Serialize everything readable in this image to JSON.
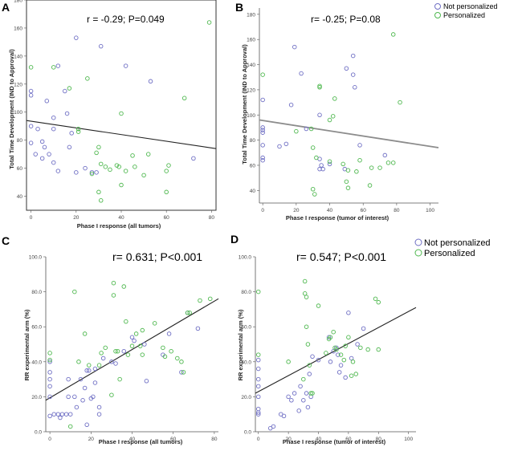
{
  "colors": {
    "blue": "#6f6fc4",
    "green": "#4fb84f",
    "line_black": "#222222",
    "line_gray": "#8c8c8c"
  },
  "legend_top": {
    "items": [
      {
        "label": "Not personalized",
        "color": "#6f6fc4"
      },
      {
        "label": "Personalized",
        "color": "#4fb84f"
      }
    ]
  },
  "legend_bottom": {
    "items": [
      {
        "label": "Not personalized",
        "color": "#6f6fc4"
      },
      {
        "label": "Personalized",
        "color": "#4fb84f"
      }
    ]
  },
  "chart_data": [
    {
      "panel": "A",
      "type": "scatter",
      "annotation": "r = -0.29; P=0.049",
      "xlabel": "Phase I response (all tumors)",
      "ylabel": "Total Time Development (IND to Approval)",
      "xlim": [
        -2,
        82
      ],
      "ylim": [
        30,
        180
      ],
      "xticks": [
        0,
        20,
        40,
        60,
        80
      ],
      "yticks": [
        40,
        60,
        80,
        100,
        120,
        140,
        160,
        180
      ],
      "fit": {
        "x0": -2,
        "y0": 94,
        "x1": 82,
        "y1": 74,
        "color": "black"
      },
      "series": [
        {
          "color": "blue",
          "points": [
            [
              0,
              112
            ],
            [
              0,
              115
            ],
            [
              0,
              90
            ],
            [
              0,
              78
            ],
            [
              2,
              70
            ],
            [
              3,
              88
            ],
            [
              5,
              79
            ],
            [
              5,
              67
            ],
            [
              6,
              75
            ],
            [
              7,
              108
            ],
            [
              8,
              70
            ],
            [
              10,
              88
            ],
            [
              10,
              96
            ],
            [
              10,
              64
            ],
            [
              12,
              133
            ],
            [
              12,
              58
            ],
            [
              15,
              115
            ],
            [
              16,
              99
            ],
            [
              17,
              75
            ],
            [
              18,
              85
            ],
            [
              20,
              153
            ],
            [
              20,
              57
            ],
            [
              24,
              60
            ],
            [
              27,
              57
            ],
            [
              29,
              57
            ],
            [
              31,
              147
            ],
            [
              42,
              133
            ],
            [
              53,
              122
            ],
            [
              72,
              67
            ]
          ]
        },
        {
          "color": "green",
          "points": [
            [
              0,
              132
            ],
            [
              10,
              132
            ],
            [
              17,
              117
            ],
            [
              21,
              88
            ],
            [
              21,
              86
            ],
            [
              25,
              124
            ],
            [
              27,
              56
            ],
            [
              29,
              71
            ],
            [
              30,
              75
            ],
            [
              30,
              43
            ],
            [
              31,
              37
            ],
            [
              31,
              63
            ],
            [
              33,
              61
            ],
            [
              35,
              59
            ],
            [
              38,
              62
            ],
            [
              39,
              61
            ],
            [
              40,
              48
            ],
            [
              40,
              99
            ],
            [
              42,
              58
            ],
            [
              45,
              69
            ],
            [
              46,
              61
            ],
            [
              50,
              55
            ],
            [
              52,
              70
            ],
            [
              60,
              58
            ],
            [
              61,
              62
            ],
            [
              60,
              43
            ],
            [
              68,
              110
            ],
            [
              79,
              164
            ]
          ]
        }
      ]
    },
    {
      "panel": "B",
      "type": "scatter",
      "annotation": "r=  -0.25; P=0.08",
      "xlabel": "Phase I response (tumor of interest)",
      "ylabel": "Total Time Development (IND to Approval)",
      "xlim": [
        -2,
        105
      ],
      "ylim": [
        30,
        185
      ],
      "xticks": [
        0,
        20,
        40,
        60,
        80,
        100
      ],
      "yticks": [
        40,
        60,
        80,
        100,
        120,
        140,
        160,
        180
      ],
      "fit": {
        "x0": -2,
        "y0": 96,
        "x1": 105,
        "y1": 74,
        "color": "gray"
      },
      "series": [
        {
          "color": "blue",
          "points": [
            [
              0,
              112
            ],
            [
              0,
              90
            ],
            [
              0,
              88
            ],
            [
              0,
              86
            ],
            [
              0,
              76
            ],
            [
              0,
              66
            ],
            [
              0,
              64
            ],
            [
              10,
              75
            ],
            [
              14,
              77
            ],
            [
              17,
              108
            ],
            [
              19,
              154
            ],
            [
              23,
              133
            ],
            [
              26,
              89
            ],
            [
              34,
              100
            ],
            [
              34,
              57
            ],
            [
              34,
              65
            ],
            [
              35,
              60
            ],
            [
              36,
              57
            ],
            [
              40,
              61
            ],
            [
              49,
              57
            ],
            [
              50,
              137
            ],
            [
              54,
              147
            ],
            [
              54,
              132
            ],
            [
              55,
              122
            ],
            [
              58,
              76
            ],
            [
              73,
              68
            ]
          ]
        },
        {
          "color": "green",
          "points": [
            [
              0,
              132
            ],
            [
              20,
              87
            ],
            [
              29,
              89
            ],
            [
              30,
              74
            ],
            [
              30,
              41
            ],
            [
              31,
              37
            ],
            [
              32,
              66
            ],
            [
              34,
              123
            ],
            [
              34,
              122
            ],
            [
              40,
              96
            ],
            [
              40,
              63
            ],
            [
              42,
              99
            ],
            [
              43,
              113
            ],
            [
              48,
              61
            ],
            [
              50,
              47
            ],
            [
              51,
              56
            ],
            [
              51,
              42
            ],
            [
              56,
              55
            ],
            [
              58,
              64
            ],
            [
              64,
              44
            ],
            [
              65,
              58
            ],
            [
              70,
              58
            ],
            [
              75,
              62
            ],
            [
              78,
              164
            ],
            [
              78,
              62
            ],
            [
              82,
              110
            ]
          ]
        }
      ]
    },
    {
      "panel": "C",
      "type": "scatter",
      "annotation": "r=  0.631; P<0.001",
      "xlabel": "Phase I response (all tumors)",
      "ylabel": "RR experimental arm (%)",
      "xlim": [
        -2,
        82
      ],
      "ylim": [
        0,
        100
      ],
      "xticks": [
        0,
        20,
        40,
        60,
        80
      ],
      "yticks": [
        0,
        20,
        40,
        60,
        80,
        100
      ],
      "fit": {
        "x0": -2,
        "y0": 18,
        "x1": 82,
        "y1": 76,
        "color": "black"
      },
      "series": [
        {
          "color": "blue",
          "points": [
            [
              0,
              40
            ],
            [
              0,
              34
            ],
            [
              0,
              30
            ],
            [
              0,
              26
            ],
            [
              0,
              20
            ],
            [
              0,
              9
            ],
            [
              2,
              10
            ],
            [
              4,
              10
            ],
            [
              5,
              8
            ],
            [
              6,
              10
            ],
            [
              8,
              10
            ],
            [
              9,
              30
            ],
            [
              9,
              20
            ],
            [
              10,
              10
            ],
            [
              12,
              20
            ],
            [
              13,
              14
            ],
            [
              15,
              30
            ],
            [
              16,
              18
            ],
            [
              17,
              25
            ],
            [
              18,
              35
            ],
            [
              18,
              4
            ],
            [
              19,
              35
            ],
            [
              20,
              19
            ],
            [
              21,
              20
            ],
            [
              22,
              36
            ],
            [
              22,
              28
            ],
            [
              24,
              14
            ],
            [
              24,
              10
            ],
            [
              26,
              42
            ],
            [
              30,
              40
            ],
            [
              32,
              39
            ],
            [
              36,
              46
            ],
            [
              40,
              54
            ],
            [
              41,
              52
            ],
            [
              46,
              50
            ],
            [
              47,
              29
            ],
            [
              55,
              44
            ],
            [
              58,
              56
            ],
            [
              64,
              34
            ],
            [
              67,
              68
            ],
            [
              72,
              59
            ]
          ]
        },
        {
          "color": "green",
          "points": [
            [
              0,
              41
            ],
            [
              0,
              45
            ],
            [
              10,
              3
            ],
            [
              12,
              80
            ],
            [
              14,
              40
            ],
            [
              17,
              56
            ],
            [
              19,
              38
            ],
            [
              24,
              38
            ],
            [
              25,
              45
            ],
            [
              27,
              48
            ],
            [
              30,
              21
            ],
            [
              31,
              78
            ],
            [
              31,
              85
            ],
            [
              32,
              46
            ],
            [
              33,
              46
            ],
            [
              34,
              30
            ],
            [
              36,
              83
            ],
            [
              37,
              63
            ],
            [
              38,
              44
            ],
            [
              40,
              49
            ],
            [
              42,
              56
            ],
            [
              44,
              49
            ],
            [
              45,
              58
            ],
            [
              45,
              44
            ],
            [
              51,
              62
            ],
            [
              55,
              48
            ],
            [
              56,
              43
            ],
            [
              59,
              46
            ],
            [
              62,
              42
            ],
            [
              64,
              40
            ],
            [
              65,
              34
            ],
            [
              67,
              68
            ],
            [
              68,
              68
            ],
            [
              73,
              75
            ],
            [
              78,
              76
            ]
          ]
        }
      ]
    },
    {
      "panel": "D",
      "type": "scatter",
      "annotation": "r=  0.547; P<0.001",
      "xlabel": "Phase I response (tumor of interest)",
      "ylabel": "RR experimental arm (%)",
      "xlim": [
        -2,
        105
      ],
      "ylim": [
        0,
        100
      ],
      "xticks": [
        0,
        20,
        40,
        60,
        80,
        100
      ],
      "yticks": [
        0,
        20,
        40,
        60,
        80,
        100
      ],
      "fit": {
        "x0": -2,
        "y0": 22,
        "x1": 105,
        "y1": 71,
        "color": "black"
      },
      "series": [
        {
          "color": "blue",
          "points": [
            [
              0,
              41
            ],
            [
              0,
              36
            ],
            [
              0,
              30
            ],
            [
              0,
              26
            ],
            [
              0,
              20
            ],
            [
              0,
              13
            ],
            [
              0,
              11
            ],
            [
              0,
              10
            ],
            [
              8,
              2
            ],
            [
              10,
              3
            ],
            [
              15,
              10
            ],
            [
              17,
              9
            ],
            [
              20,
              20
            ],
            [
              22,
              18
            ],
            [
              24,
              22
            ],
            [
              27,
              12
            ],
            [
              28,
              26
            ],
            [
              30,
              18
            ],
            [
              32,
              22
            ],
            [
              33,
              14
            ],
            [
              34,
              33
            ],
            [
              35,
              20
            ],
            [
              36,
              43
            ],
            [
              40,
              41
            ],
            [
              47,
              54
            ],
            [
              48,
              40
            ],
            [
              50,
              46
            ],
            [
              52,
              48
            ],
            [
              53,
              44
            ],
            [
              54,
              34
            ],
            [
              55,
              38
            ],
            [
              58,
              31
            ],
            [
              60,
              68
            ],
            [
              62,
              42
            ],
            [
              66,
              50
            ],
            [
              70,
              59
            ]
          ]
        },
        {
          "color": "green",
          "points": [
            [
              0,
              80
            ],
            [
              0,
              44
            ],
            [
              20,
              40
            ],
            [
              30,
              30
            ],
            [
              31,
              79
            ],
            [
              31,
              86
            ],
            [
              32,
              77
            ],
            [
              32,
              60
            ],
            [
              33,
              50
            ],
            [
              34,
              38
            ],
            [
              35,
              22
            ],
            [
              36,
              22
            ],
            [
              40,
              72
            ],
            [
              45,
              45
            ],
            [
              47,
              53
            ],
            [
              48,
              54
            ],
            [
              50,
              57
            ],
            [
              51,
              48
            ],
            [
              52,
              47
            ],
            [
              55,
              44
            ],
            [
              57,
              41
            ],
            [
              58,
              49
            ],
            [
              60,
              54
            ],
            [
              62,
              32
            ],
            [
              63,
              40
            ],
            [
              65,
              33
            ],
            [
              68,
              48
            ],
            [
              73,
              47
            ],
            [
              78,
              76
            ],
            [
              80,
              74
            ],
            [
              80,
              47
            ]
          ]
        }
      ]
    }
  ]
}
